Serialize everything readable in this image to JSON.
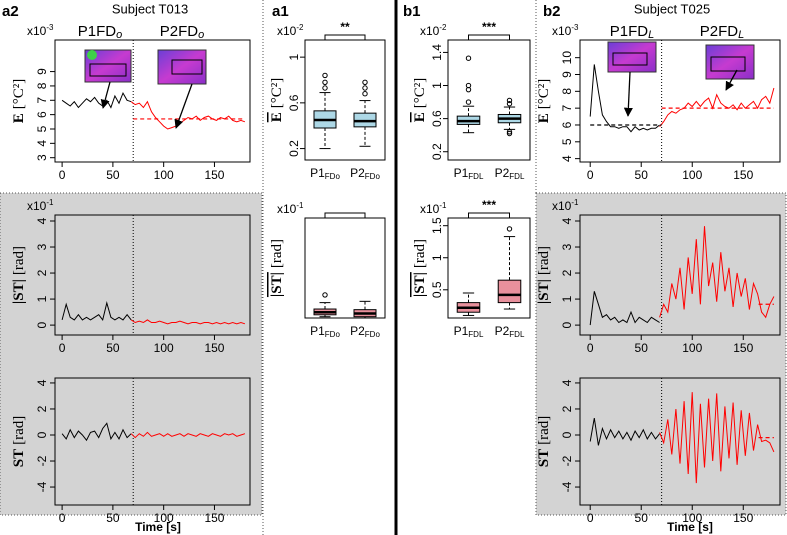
{
  "chart_data": [
    {
      "type": "line",
      "panel": "a2",
      "title": "Subject T013",
      "ylabel": "E",
      "ylabel_unit": "[°C²]",
      "ylabel_overline": false,
      "y_multiplier": {
        "base": "x10",
        "exp": "-3"
      },
      "annotations": [
        {
          "text": "P1FD",
          "sub": "o"
        },
        {
          "text": "P2FD",
          "sub": "o"
        }
      ],
      "xlim": [
        -7,
        185
      ],
      "xticks": [
        0,
        50,
        100,
        150
      ],
      "ylim": [
        2.7,
        11.2
      ],
      "yticks": [
        3,
        4,
        5,
        6,
        7,
        8,
        9
      ],
      "vline": 70,
      "series": [
        {
          "color": "#000000",
          "x": [
            0,
            4,
            8,
            12,
            16,
            20,
            24,
            28,
            32,
            36,
            40,
            44,
            48,
            52,
            56,
            60,
            64,
            68
          ],
          "values": [
            7.0,
            6.8,
            6.6,
            6.9,
            6.5,
            6.8,
            7.1,
            6.9,
            7.2,
            6.8,
            6.6,
            7.0,
            6.5,
            7.3,
            6.8,
            7.5,
            7.0,
            6.9
          ]
        },
        {
          "color": "#ff0000",
          "x": [
            68,
            72,
            76,
            80,
            84,
            88,
            92,
            96,
            100,
            104,
            108,
            112,
            116,
            120,
            124,
            128,
            132,
            136,
            140,
            144,
            148,
            152,
            156,
            160,
            164,
            168,
            172,
            176,
            180
          ],
          "values": [
            6.9,
            6.7,
            6.8,
            6.5,
            6.9,
            6.2,
            5.8,
            5.5,
            5.2,
            5.0,
            5.1,
            5.2,
            5.4,
            5.6,
            5.8,
            5.7,
            5.9,
            5.6,
            5.8,
            5.9,
            5.7,
            5.6,
            5.8,
            5.7,
            5.9,
            5.6,
            5.5,
            5.6,
            5.5
          ]
        }
      ],
      "hlines": [
        {
          "value": 5.7,
          "x": [
            70,
            180
          ],
          "color": "#ff0000"
        }
      ]
    },
    {
      "type": "line",
      "ylabel": "|ST|",
      "ylabel_unit": "[rad]",
      "ylabel_overline": false,
      "y_multiplier": {
        "base": "x10",
        "exp": "-1"
      },
      "xlim": [
        -7,
        185
      ],
      "xticks": [
        0,
        50,
        100,
        150
      ],
      "ylim": [
        -0.38,
        4.23
      ],
      "yticks": [
        0,
        1,
        2,
        3,
        4
      ],
      "vline": 70,
      "series": [
        {
          "color": "#000000",
          "x": [
            0,
            4,
            8,
            12,
            16,
            20,
            24,
            28,
            32,
            36,
            40,
            44,
            48,
            52,
            56,
            60,
            64,
            68
          ],
          "values": [
            0.2,
            0.8,
            0.3,
            0.2,
            0.4,
            0.2,
            0.3,
            0.2,
            0.3,
            0.4,
            0.2,
            0.85,
            0.3,
            0.2,
            0.3,
            0.2,
            0.4,
            0.2
          ]
        },
        {
          "color": "#ff0000",
          "x": [
            68,
            72,
            76,
            80,
            84,
            88,
            92,
            96,
            100,
            104,
            108,
            112,
            116,
            120,
            124,
            128,
            132,
            136,
            140,
            144,
            148,
            152,
            156,
            160,
            164,
            168,
            172,
            176,
            180
          ],
          "values": [
            0.2,
            0.1,
            0.15,
            0.1,
            0.2,
            0.1,
            0.1,
            0.15,
            0.1,
            0.05,
            0.1,
            0.1,
            0.15,
            0.1,
            0.05,
            0.1,
            0.1,
            0.05,
            0.1,
            0.1,
            0.05,
            0.1,
            0.05,
            0.1,
            0.05,
            0.1,
            0.05,
            0.1,
            0.05
          ]
        }
      ],
      "hlines": []
    },
    {
      "type": "line",
      "ylabel": "ST",
      "ylabel_unit": "[rad]",
      "ylabel_overline": false,
      "xlabel": "Time [s]",
      "xlim": [
        -7,
        185
      ],
      "xticks": [
        0,
        50,
        100,
        150
      ],
      "ylim": [
        -5.38,
        4.38
      ],
      "yticks": [
        -4,
        -2,
        0,
        2,
        4
      ],
      "vline": 70,
      "series": [
        {
          "color": "#000000",
          "x": [
            0,
            4,
            8,
            12,
            16,
            20,
            24,
            28,
            32,
            36,
            40,
            44,
            48,
            52,
            56,
            60,
            64,
            68
          ],
          "values": [
            0.1,
            -0.3,
            0.4,
            -0.2,
            0.3,
            0,
            -0.4,
            0.2,
            0.3,
            -0.2,
            0.5,
            0.9,
            -0.3,
            0.2,
            -0.3,
            0.4,
            -0.2,
            0.1
          ]
        },
        {
          "color": "#ff0000",
          "x": [
            68,
            72,
            76,
            80,
            84,
            88,
            92,
            96,
            100,
            104,
            108,
            112,
            116,
            120,
            124,
            128,
            132,
            136,
            140,
            144,
            148,
            152,
            156,
            160,
            164,
            168,
            172,
            176,
            180
          ],
          "values": [
            0.1,
            -0.2,
            0.1,
            -0.1,
            0.2,
            -0.1,
            0,
            0.1,
            -0.1,
            0.1,
            -0.1,
            0,
            0.1,
            -0.1,
            0.1,
            0,
            -0.1,
            0.1,
            0,
            -0.1,
            0.1,
            0,
            -0.1,
            0.1,
            0,
            0.1,
            -0.1,
            0,
            0.1
          ]
        }
      ],
      "hlines": []
    },
    {
      "type": "box",
      "panel": "a1",
      "ylabel": "E",
      "ylabel_unit": "[°C²]",
      "ylabel_overline": true,
      "y_multiplier": {
        "base": "x10",
        "exp": "-2"
      },
      "significance": "**",
      "ylim": [
        0.1,
        1.15
      ],
      "yticks": [
        0.2,
        0.6,
        1.0
      ],
      "color": "#add8e6",
      "categories": [
        "P1",
        "P2"
      ],
      "category_subscripts": [
        "FDo",
        "FDo"
      ],
      "boxes": [
        {
          "whisker_low": 0.2,
          "q1": 0.38,
          "median": 0.45,
          "q3": 0.53,
          "whisker_high": 0.69,
          "outliers": [
            0.73,
            0.78,
            0.84
          ]
        },
        {
          "whisker_low": 0.22,
          "q1": 0.39,
          "median": 0.44,
          "q3": 0.51,
          "whisker_high": 0.62,
          "outliers": [
            0.68,
            0.73,
            0.78
          ]
        }
      ]
    },
    {
      "type": "box",
      "ylabel": "|ST|",
      "ylabel_unit": "[rad]",
      "ylabel_overline": true,
      "y_multiplier": {
        "base": "x10",
        "exp": "-1"
      },
      "ylim": [
        0.06,
        1.62
      ],
      "color": "#e8909c",
      "categories": [
        "P1",
        "P2"
      ],
      "category_subscripts": [
        "FDo",
        "FDo"
      ],
      "boxes": [
        {
          "whisker_low": 0.08,
          "q1": 0.11,
          "median": 0.15,
          "q3": 0.2,
          "whisker_high": 0.3,
          "outliers": [
            0.42
          ]
        },
        {
          "whisker_low": 0.06,
          "q1": 0.08,
          "median": 0.13,
          "q3": 0.19,
          "whisker_high": 0.32,
          "outliers": []
        }
      ]
    },
    {
      "type": "box",
      "panel": "b1",
      "ylabel": "E",
      "ylabel_unit": "[°C²]",
      "ylabel_overline": true,
      "y_multiplier": {
        "base": "x10",
        "exp": "-2"
      },
      "significance": "***",
      "ylim": [
        0.1,
        1.55
      ],
      "yticks": [
        0.2,
        0.6,
        1.0,
        1.4
      ],
      "color": "#add8e6",
      "categories": [
        "P1",
        "P2"
      ],
      "category_subscripts": [
        "FDL",
        "FDL"
      ],
      "boxes": [
        {
          "whisker_low": 0.43,
          "q1": 0.53,
          "median": 0.57,
          "q3": 0.63,
          "whisker_high": 0.75,
          "outliers": [
            0.8,
            0.95,
            1.0,
            1.33
          ]
        },
        {
          "whisker_low": 0.47,
          "q1": 0.55,
          "median": 0.6,
          "q3": 0.65,
          "whisker_high": 0.74,
          "outliers": [
            0.42,
            0.44,
            0.78,
            0.82
          ]
        }
      ]
    },
    {
      "type": "box",
      "ylabel": "|ST|",
      "ylabel_unit": "[rad]",
      "ylabel_overline": true,
      "y_multiplier": {
        "base": "x10",
        "exp": "-1"
      },
      "significance": "***",
      "ylim": [
        0.06,
        1.62
      ],
      "yticks": [
        0.5,
        1.0,
        1.5
      ],
      "color": "#e8909c",
      "categories": [
        "P1",
        "P2"
      ],
      "category_subscripts": [
        "FDL",
        "FDL"
      ],
      "boxes": [
        {
          "whisker_low": 0.1,
          "q1": 0.15,
          "median": 0.22,
          "q3": 0.3,
          "whisker_high": 0.45,
          "outliers": []
        },
        {
          "whisker_low": 0.2,
          "q1": 0.3,
          "median": 0.42,
          "q3": 0.65,
          "whisker_high": 1.33,
          "outliers": [
            1.45
          ]
        }
      ]
    },
    {
      "type": "line",
      "panel": "b2",
      "title": "Subject T025",
      "ylabel": "E",
      "ylabel_unit": "[°C²]",
      "ylabel_overline": false,
      "y_multiplier": {
        "base": "x10",
        "exp": "-3"
      },
      "annotations": [
        {
          "text": "P1FD",
          "sub": "L"
        },
        {
          "text": "P2FD",
          "sub": "L"
        }
      ],
      "xlim": [
        -10,
        186
      ],
      "xticks": [
        0,
        50,
        100,
        150
      ],
      "ylim": [
        3.8,
        11.05
      ],
      "yticks": [
        4,
        5,
        6,
        7,
        8,
        9,
        10
      ],
      "vline": 70,
      "series": [
        {
          "color": "#000000",
          "x": [
            0,
            4,
            8,
            12,
            16,
            20,
            24,
            28,
            32,
            36,
            40,
            44,
            48,
            52,
            56,
            60,
            64,
            68
          ],
          "values": [
            6.5,
            9.6,
            8.0,
            6.6,
            6.2,
            5.9,
            5.9,
            5.8,
            5.9,
            5.9,
            5.6,
            5.9,
            5.7,
            5.8,
            5.7,
            5.8,
            5.8,
            6.0
          ]
        },
        {
          "color": "#ff0000",
          "x": [
            68,
            72,
            76,
            80,
            84,
            88,
            92,
            96,
            100,
            104,
            108,
            112,
            116,
            120,
            124,
            128,
            132,
            136,
            140,
            144,
            148,
            152,
            156,
            160,
            164,
            168,
            172,
            176,
            180
          ],
          "values": [
            5.9,
            6.2,
            6.6,
            6.8,
            6.7,
            6.9,
            7.0,
            7.3,
            7.1,
            7.4,
            7.1,
            7.4,
            7.6,
            7.0,
            7.8,
            7.3,
            7.1,
            7.0,
            7.2,
            6.9,
            7.3,
            7.0,
            7.2,
            7.4,
            7.0,
            7.5,
            7.7,
            7.3,
            8.2
          ]
        }
      ],
      "hlines": [
        {
          "value": 6.0,
          "x": [
            0,
            70
          ],
          "color": "#000000"
        },
        {
          "value": 7.0,
          "x": [
            70,
            180
          ],
          "color": "#ff0000"
        }
      ]
    },
    {
      "type": "line",
      "ylabel": "|ST|",
      "ylabel_unit": "[rad]",
      "ylabel_overline": false,
      "y_multiplier": {
        "base": "x10",
        "exp": "-1"
      },
      "xlim": [
        -10,
        186
      ],
      "xticks": [
        0,
        50,
        100,
        150
      ],
      "ylim": [
        -0.38,
        4.23
      ],
      "yticks": [
        0,
        1,
        2,
        3,
        4
      ],
      "vline": 70,
      "series": [
        {
          "color": "#000000",
          "x": [
            0,
            4,
            8,
            12,
            16,
            20,
            24,
            28,
            32,
            36,
            40,
            44,
            48,
            52,
            56,
            60,
            64,
            68
          ],
          "values": [
            0,
            1.3,
            0.8,
            0.3,
            0.4,
            0.2,
            0.3,
            0.1,
            0.2,
            0.1,
            0.5,
            0.1,
            0.3,
            0.2,
            0.1,
            0.3,
            0.2,
            0.1
          ]
        },
        {
          "color": "#ff0000",
          "x": [
            68,
            72,
            76,
            80,
            84,
            88,
            92,
            96,
            100,
            104,
            108,
            112,
            116,
            120,
            124,
            128,
            132,
            136,
            140,
            144,
            148,
            152,
            156,
            160,
            164,
            168,
            172,
            176,
            180
          ],
          "values": [
            0.3,
            0.8,
            0.5,
            1.6,
            1.0,
            2.2,
            0.6,
            2.6,
            1.2,
            3.3,
            0.8,
            3.8,
            1.5,
            2.4,
            0.9,
            2.8,
            1.3,
            2.2,
            0.7,
            2.0,
            1.1,
            1.8,
            0.6,
            1.6,
            1.2,
            0.5,
            0.3,
            0.8,
            1.1
          ]
        }
      ],
      "hlines": [
        {
          "value": 0.8,
          "x": [
            165,
            180
          ],
          "color": "#ff0000"
        }
      ]
    },
    {
      "type": "line",
      "ylabel": "ST",
      "ylabel_unit": "[rad]",
      "ylabel_overline": false,
      "xlabel": "Time [s]",
      "xlim": [
        -10,
        186
      ],
      "xticks": [
        0,
        50,
        100,
        150
      ],
      "ylim": [
        -5.38,
        4.38
      ],
      "yticks": [
        -4,
        -2,
        0,
        2,
        4
      ],
      "vline": 70,
      "series": [
        {
          "color": "#000000",
          "x": [
            0,
            4,
            8,
            12,
            16,
            20,
            24,
            28,
            32,
            36,
            40,
            44,
            48,
            52,
            56,
            60,
            64,
            68
          ],
          "values": [
            -0.5,
            1.3,
            -0.8,
            0.5,
            -0.3,
            0.4,
            -0.2,
            0.3,
            -0.3,
            0.2,
            -0.4,
            0.3,
            -0.2,
            0.4,
            -0.3,
            0.2,
            -0.3,
            0.1
          ]
        },
        {
          "color": "#ff0000",
          "x": [
            68,
            72,
            76,
            80,
            84,
            88,
            92,
            96,
            100,
            104,
            108,
            112,
            116,
            120,
            124,
            128,
            132,
            136,
            140,
            144,
            148,
            152,
            156,
            160,
            164,
            168,
            172,
            176,
            180
          ],
          "values": [
            0.2,
            -0.6,
            1.2,
            -1.5,
            2.0,
            -2.2,
            2.6,
            -3.0,
            3.3,
            -3.7,
            2.4,
            -2.5,
            2.8,
            -2.0,
            3.2,
            -2.8,
            2.2,
            -1.8,
            2.5,
            -2.3,
            1.9,
            -1.6,
            1.7,
            -1.2,
            0.8,
            -0.5,
            -0.4,
            -0.6,
            -1.3
          ]
        }
      ],
      "hlines": [
        {
          "value": -0.2,
          "x": [
            165,
            180
          ],
          "color": "#ff0000"
        }
      ]
    }
  ]
}
